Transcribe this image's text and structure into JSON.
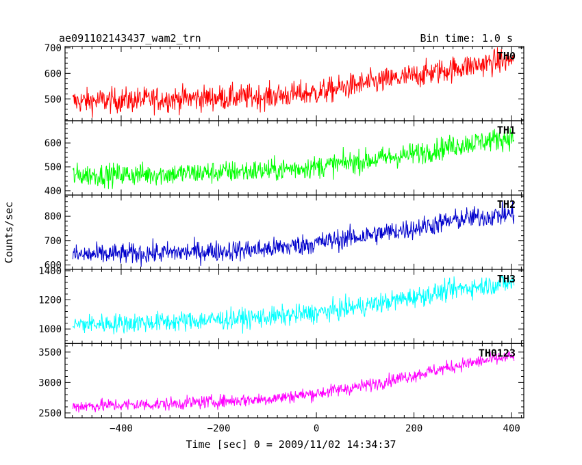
{
  "chart_data": {
    "type": "line",
    "title": "ae091102143437_wam2_trn",
    "bin_time_label": "Bin time: 1.0 s",
    "xlabel": "Time [sec] 0 = 2009/11/02 14:34:37",
    "ylabel": "Counts/sec",
    "xlim": [
      -515,
      425
    ],
    "x_start": -499,
    "x_end": 405,
    "x_step": 1,
    "x_ticks": [
      -400,
      -200,
      0,
      200,
      400
    ],
    "x_tick_labels": [
      "−400",
      "−200",
      "0",
      "200",
      "400"
    ],
    "grid": false,
    "legend": "none",
    "panels": [
      {
        "name": "TH0",
        "color": "#ff0000",
        "ylim": [
          415,
          705
        ],
        "y_ticks": [
          500,
          600,
          700
        ],
        "y_tick_labels": [
          "500",
          "600",
          "700"
        ],
        "trend": [
          [
            -499,
            490
          ],
          [
            -300,
            500
          ],
          [
            -100,
            510
          ],
          [
            0,
            525
          ],
          [
            100,
            560
          ],
          [
            200,
            590
          ],
          [
            300,
            625
          ],
          [
            405,
            655
          ]
        ],
        "noise": 25
      },
      {
        "name": "TH1",
        "color": "#00ff00",
        "ylim": [
          382,
          693
        ],
        "y_ticks": [
          400,
          500,
          600
        ],
        "y_tick_labels": [
          "400",
          "500",
          "600"
        ],
        "trend": [
          [
            -499,
            465
          ],
          [
            -300,
            470
          ],
          [
            -100,
            485
          ],
          [
            0,
            500
          ],
          [
            100,
            525
          ],
          [
            200,
            555
          ],
          [
            300,
            595
          ],
          [
            405,
            625
          ]
        ],
        "noise": 24
      },
      {
        "name": "TH2",
        "color": "#0000cc",
        "ylim": [
          582,
          887
        ],
        "y_ticks": [
          600,
          700,
          800
        ],
        "y_tick_labels": [
          "600",
          "700",
          "800"
        ],
        "trend": [
          [
            -499,
            640
          ],
          [
            -300,
            650
          ],
          [
            -100,
            665
          ],
          [
            0,
            690
          ],
          [
            100,
            720
          ],
          [
            200,
            750
          ],
          [
            300,
            790
          ],
          [
            405,
            810
          ]
        ],
        "noise": 22
      },
      {
        "name": "TH3",
        "color": "#00ffff",
        "ylim": [
          900,
          1410
        ],
        "y_ticks": [
          1000,
          1200,
          1400
        ],
        "y_tick_labels": [
          "1000",
          "1200",
          "1400"
        ],
        "trend": [
          [
            -499,
            1030
          ],
          [
            -300,
            1050
          ],
          [
            -100,
            1080
          ],
          [
            0,
            1110
          ],
          [
            100,
            1160
          ],
          [
            200,
            1220
          ],
          [
            300,
            1280
          ],
          [
            405,
            1320
          ]
        ],
        "noise": 35
      },
      {
        "name": "TH0123",
        "color": "#ff00ff",
        "ylim": [
          2420,
          3640
        ],
        "y_ticks": [
          2500,
          3000,
          3500
        ],
        "y_tick_labels": [
          "2500",
          "3000",
          "3500"
        ],
        "trend": [
          [
            -499,
            2610
          ],
          [
            -300,
            2650
          ],
          [
            -100,
            2730
          ],
          [
            0,
            2820
          ],
          [
            100,
            2950
          ],
          [
            200,
            3120
          ],
          [
            300,
            3300
          ],
          [
            405,
            3430
          ]
        ],
        "noise": 55
      }
    ]
  }
}
